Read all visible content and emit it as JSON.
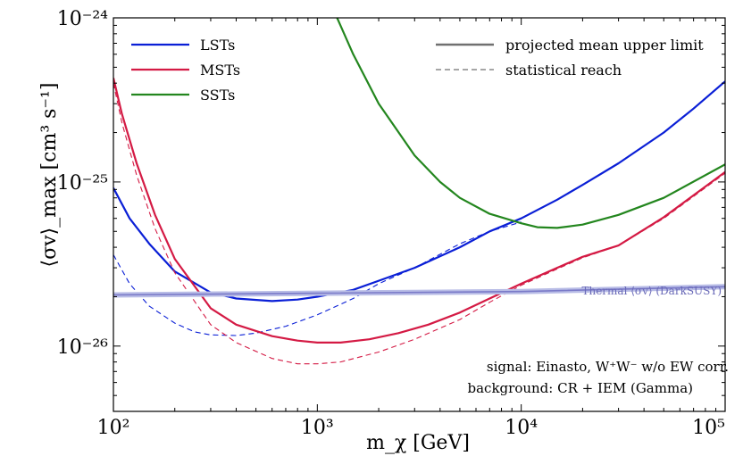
{
  "chart_data": {
    "type": "line",
    "xlabel": "m_χ [GeV]",
    "ylabel": "⟨σv⟩_max [cm³ s⁻¹]",
    "xscale": "log",
    "yscale": "log",
    "xlim": [
      100,
      100000
    ],
    "ylim": [
      4e-27,
      1e-24
    ],
    "x_tick_labels": [
      "10²",
      "10³",
      "10⁴",
      "10⁵"
    ],
    "y_tick_labels": [
      "10⁻²⁶",
      "10⁻²⁵",
      "10⁻²⁴"
    ],
    "legend_left": [
      "LSTs",
      "MSTs",
      "SSTs"
    ],
    "legend_right": [
      "projected mean upper limit",
      "statistical reach"
    ],
    "legend_placement": "top",
    "colors": {
      "LSTs": "#0a1fd6",
      "MSTs": "#d41a44",
      "SSTs": "#23861e",
      "thermal": "#7a7ac8",
      "thermal_band": "#b8bce6"
    },
    "series": [
      {
        "name": "LSTs",
        "style": "solid",
        "x": [
          100,
          120,
          150,
          200,
          300,
          400,
          600,
          800,
          1000,
          1500,
          2000,
          3000,
          5000,
          7000,
          10000,
          15000,
          20000,
          30000,
          50000,
          70000,
          100000
        ],
        "y": [
          9.2e-26,
          6e-26,
          4.2e-26,
          2.85e-26,
          2.12e-26,
          1.95e-26,
          1.88e-26,
          1.92e-26,
          2e-26,
          2.2e-26,
          2.5e-26,
          3e-26,
          4e-26,
          5e-26,
          6e-26,
          7.8e-26,
          9.6e-26,
          1.3e-25,
          2e-25,
          2.8e-25,
          4.1e-25
        ]
      },
      {
        "name": "LSTs",
        "style": "dashed",
        "x": [
          100,
          120,
          150,
          200,
          250,
          300,
          400,
          500,
          700,
          1000,
          1500,
          2000,
          3000,
          5000,
          7000,
          10000
        ],
        "y": [
          3.6e-26,
          2.4e-26,
          1.75e-26,
          1.38e-26,
          1.22e-26,
          1.17e-26,
          1.16e-26,
          1.2e-26,
          1.32e-26,
          1.55e-26,
          1.95e-26,
          2.4e-26,
          3e-26,
          4.2e-26,
          5e-26,
          5.7e-26
        ]
      },
      {
        "name": "MSTs",
        "style": "solid",
        "x": [
          100,
          110,
          130,
          160,
          200,
          300,
          400,
          600,
          800,
          1000,
          1300,
          1800,
          2500,
          3500,
          5000,
          7000,
          10000,
          15000,
          20000,
          30000,
          50000,
          100000
        ],
        "y": [
          4.3e-25,
          2.6e-25,
          1.3e-25,
          6.3e-26,
          3.4e-26,
          1.7e-26,
          1.35e-26,
          1.15e-26,
          1.08e-26,
          1.05e-26,
          1.05e-26,
          1.1e-26,
          1.2e-26,
          1.35e-26,
          1.6e-26,
          1.95e-26,
          2.4e-26,
          3e-26,
          3.5e-26,
          4.1e-26,
          6.1e-26,
          1.15e-25
        ]
      },
      {
        "name": "MSTs",
        "style": "dashed",
        "x": [
          100,
          110,
          130,
          160,
          200,
          300,
          400,
          600,
          800,
          1000,
          1300,
          2000,
          3000,
          5000,
          7000,
          10000,
          15000,
          20000,
          30000,
          50000,
          100000
        ],
        "y": [
          4e-25,
          2.3e-25,
          1.1e-25,
          5.2e-26,
          2.8e-26,
          1.35e-26,
          1.05e-26,
          8.4e-27,
          7.8e-27,
          7.8e-27,
          8e-27,
          9.2e-27,
          1.1e-26,
          1.45e-26,
          1.85e-26,
          2.35e-26,
          2.95e-26,
          3.45e-26,
          4.1e-26,
          6e-26,
          1.13e-25
        ]
      },
      {
        "name": "SSTs",
        "style": "solid",
        "x": [
          1250,
          1500,
          2000,
          3000,
          4000,
          5000,
          7000,
          10000,
          12000,
          15000,
          20000,
          30000,
          50000,
          100000
        ],
        "y": [
          1e-24,
          6e-25,
          3e-25,
          1.45e-25,
          1e-25,
          8e-26,
          6.4e-26,
          5.6e-26,
          5.3e-26,
          5.25e-26,
          5.5e-26,
          6.3e-26,
          8e-26,
          1.28e-25
        ]
      },
      {
        "name": "thermal",
        "style": "band",
        "x": [
          100,
          1000,
          10000,
          100000
        ],
        "y": [
          2.05e-26,
          2.1e-26,
          2.15e-26,
          2.3e-26
        ]
      }
    ],
    "annotations": {
      "thermal_label": "Thermal ⟨σv⟩ (DarkSUSY)",
      "signal": "signal: Einasto, W⁺W⁻ w/o EW corr.",
      "background": "background: CR + IEM (Gamma)"
    }
  }
}
